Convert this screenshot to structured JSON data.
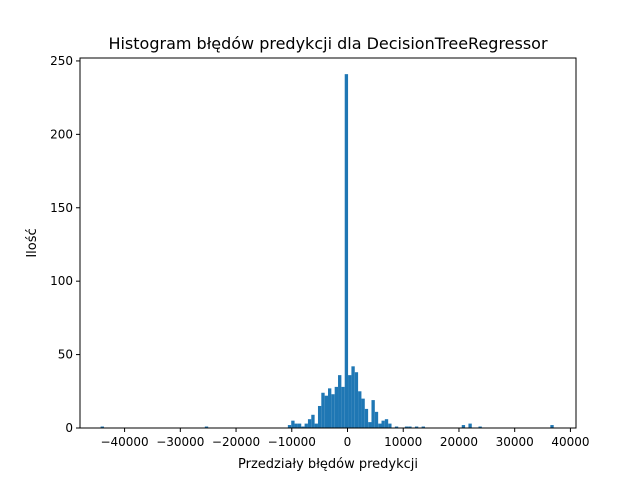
{
  "chart_data": {
    "type": "bar",
    "title": "Histogram błędów predykcji dla DecisionTreeRegressor",
    "xlabel": "Przedziały błędów predykcji",
    "ylabel": "Ilość",
    "xlim": [
      -48000,
      41000
    ],
    "ylim": [
      0,
      252
    ],
    "grid": false,
    "bar_color": "#1f77b4",
    "bin_width": 600,
    "x_ticks": [
      {
        "value": -40000,
        "label": "−40000"
      },
      {
        "value": -30000,
        "label": "−30000"
      },
      {
        "value": -20000,
        "label": "−20000"
      },
      {
        "value": -10000,
        "label": "−10000"
      },
      {
        "value": 0,
        "label": "0"
      },
      {
        "value": 10000,
        "label": "10000"
      },
      {
        "value": 20000,
        "label": "20000"
      },
      {
        "value": 30000,
        "label": "30000"
      },
      {
        "value": 40000,
        "label": "40000"
      }
    ],
    "y_ticks": [
      {
        "value": 0,
        "label": "0"
      },
      {
        "value": 50,
        "label": "50"
      },
      {
        "value": 100,
        "label": "100"
      },
      {
        "value": 150,
        "label": "150"
      },
      {
        "value": 200,
        "label": "200"
      },
      {
        "value": 250,
        "label": "250"
      }
    ],
    "bins": [
      {
        "x": -44000,
        "count": 1
      },
      {
        "x": -25300,
        "count": 1
      },
      {
        "x": -10400,
        "count": 2
      },
      {
        "x": -9800,
        "count": 5
      },
      {
        "x": -9200,
        "count": 3
      },
      {
        "x": -8600,
        "count": 3
      },
      {
        "x": -8000,
        "count": 1
      },
      {
        "x": -7400,
        "count": 3
      },
      {
        "x": -6800,
        "count": 6
      },
      {
        "x": -6200,
        "count": 9
      },
      {
        "x": -5600,
        "count": 3
      },
      {
        "x": -5000,
        "count": 15
      },
      {
        "x": -4400,
        "count": 24
      },
      {
        "x": -3800,
        "count": 22
      },
      {
        "x": -3200,
        "count": 27
      },
      {
        "x": -2600,
        "count": 23
      },
      {
        "x": -2000,
        "count": 28
      },
      {
        "x": -1400,
        "count": 36
      },
      {
        "x": -800,
        "count": 28
      },
      {
        "x": -200,
        "count": 241
      },
      {
        "x": 400,
        "count": 36
      },
      {
        "x": 1000,
        "count": 42
      },
      {
        "x": 1600,
        "count": 38
      },
      {
        "x": 2200,
        "count": 25
      },
      {
        "x": 2800,
        "count": 20
      },
      {
        "x": 3400,
        "count": 13
      },
      {
        "x": 4000,
        "count": 4
      },
      {
        "x": 4600,
        "count": 19
      },
      {
        "x": 5200,
        "count": 11
      },
      {
        "x": 5800,
        "count": 3
      },
      {
        "x": 6400,
        "count": 5
      },
      {
        "x": 7000,
        "count": 6
      },
      {
        "x": 7600,
        "count": 3
      },
      {
        "x": 8800,
        "count": 1
      },
      {
        "x": 10600,
        "count": 1
      },
      {
        "x": 11200,
        "count": 1
      },
      {
        "x": 12400,
        "count": 1
      },
      {
        "x": 13600,
        "count": 1
      },
      {
        "x": 20800,
        "count": 2
      },
      {
        "x": 22000,
        "count": 3
      },
      {
        "x": 23800,
        "count": 1
      },
      {
        "x": 36700,
        "count": 2
      }
    ]
  }
}
